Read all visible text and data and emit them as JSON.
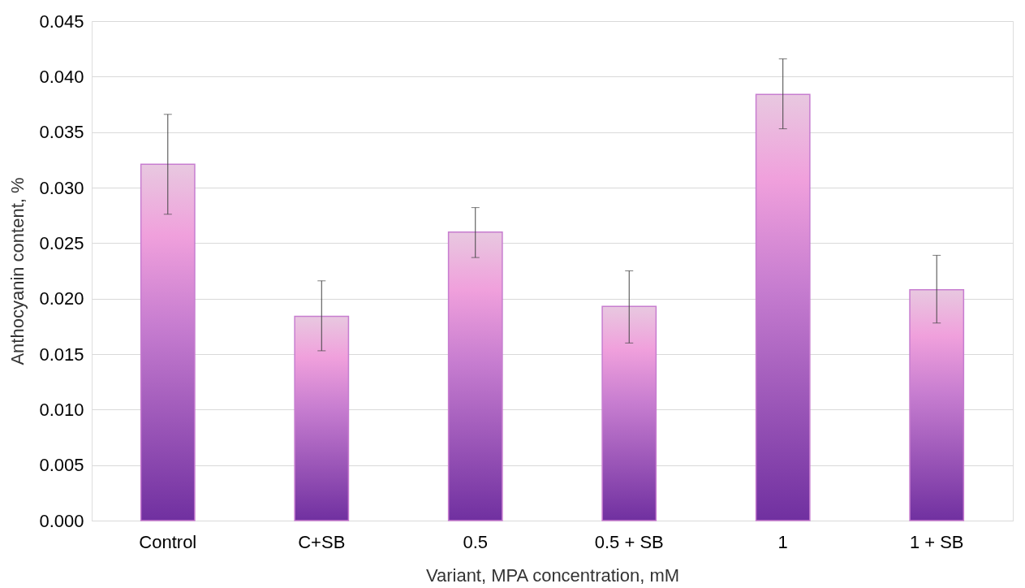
{
  "chart_data": {
    "type": "bar",
    "xlabel": "Variant, MPA concentration, mM",
    "ylabel": "Anthocyanin content, %",
    "categories": [
      "Control",
      "C+SB",
      "0.5",
      "0.5 + SB",
      "1",
      "1 + SB"
    ],
    "values": [
      0.0321,
      0.0184,
      0.026,
      0.0193,
      0.0384,
      0.0208
    ],
    "errors": [
      [
        0.0276,
        0.0366
      ],
      [
        0.0153,
        0.0216
      ],
      [
        0.0237,
        0.0282
      ],
      [
        0.016,
        0.0225
      ],
      [
        0.0353,
        0.0416
      ],
      [
        0.0178,
        0.0239
      ]
    ],
    "color": "#c77dd0",
    "ylim": [
      0,
      0.045
    ],
    "yticks": [
      {
        "value": 0,
        "label": "0.000"
      },
      {
        "value": 0.005,
        "label": "0.005"
      },
      {
        "value": 0.01,
        "label": "0.010"
      },
      {
        "value": 0.015,
        "label": "0.015"
      },
      {
        "value": 0.02,
        "label": "0.020"
      },
      {
        "value": 0.025,
        "label": "0.025"
      },
      {
        "value": 0.03,
        "label": "0.030"
      },
      {
        "value": 0.035,
        "label": "0.035"
      },
      {
        "value": 0.04,
        "label": "0.040"
      },
      {
        "value": 0.045,
        "label": "0.045"
      }
    ],
    "grid": "y"
  }
}
